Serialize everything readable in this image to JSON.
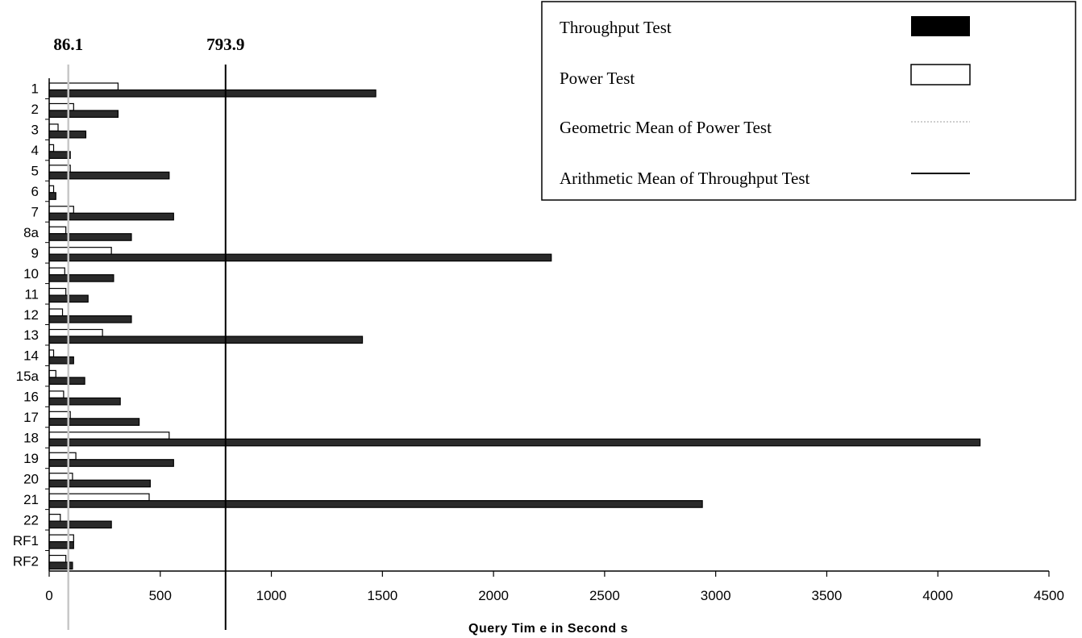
{
  "chart_data": {
    "type": "bar",
    "orientation": "horizontal",
    "categories": [
      "1",
      "2",
      "3",
      "4",
      "5",
      "6",
      "7",
      "8a",
      "9",
      "10",
      "11",
      "12",
      "13",
      "14",
      "15a",
      "16",
      "17",
      "18",
      "19",
      "20",
      "21",
      "22",
      "RF1",
      "RF2"
    ],
    "series": [
      {
        "name": "Power Test",
        "color": "#ffffff",
        "values": [
          310,
          110,
          40,
          20,
          95,
          20,
          110,
          75,
          280,
          70,
          75,
          60,
          240,
          20,
          30,
          65,
          95,
          540,
          120,
          105,
          450,
          50,
          110,
          75
        ]
      },
      {
        "name": "Throughput Test",
        "color": "#2a2a2a",
        "values": [
          1470,
          310,
          165,
          95,
          540,
          30,
          560,
          370,
          2260,
          290,
          175,
          370,
          1410,
          110,
          160,
          320,
          405,
          4190,
          560,
          455,
          2940,
          280,
          110,
          105
        ]
      }
    ],
    "reference_lines": [
      {
        "name": "Geometric Mean of Power Test",
        "value": 86.1,
        "label": "86.1",
        "color": "#c8c8c8"
      },
      {
        "name": "Arithmetic Mean of Throughput Test",
        "value": 793.9,
        "label": "793.9",
        "color": "#000000"
      }
    ],
    "xlabel": "Query Tim e in Second s",
    "xlim": [
      0,
      4500
    ],
    "xticks": [
      0,
      500,
      1000,
      1500,
      2000,
      2500,
      3000,
      3500,
      4000,
      4500
    ],
    "xtick_labels": [
      "0",
      "500",
      "1000",
      "1500",
      "2000",
      "2500",
      "3000",
      "3500",
      "4000",
      "4500"
    ],
    "grid": false,
    "legend_position": "top-right",
    "legend": [
      {
        "label": "Throughput Test",
        "swatch": "filled-box"
      },
      {
        "label": "Power Test",
        "swatch": "outlined-box"
      },
      {
        "label": "Geometric Mean of Power Test",
        "swatch": "dotted-line"
      },
      {
        "label": "Arithmetic Mean of Throughput Test",
        "swatch": "solid-line"
      }
    ]
  }
}
